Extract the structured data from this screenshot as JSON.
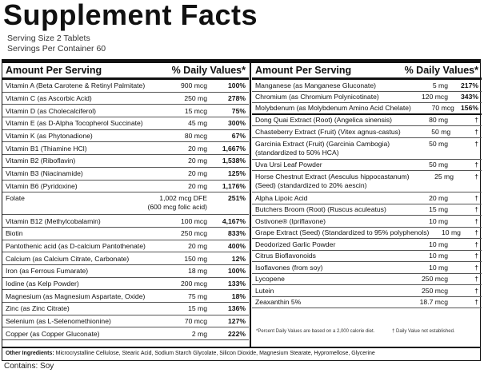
{
  "title": "Supplement Facts",
  "serving_size": "Serving Size 2 Tablets",
  "servings_per_container": "Servings Per Container 60",
  "headers": {
    "amount": "Amount Per Serving",
    "dv": "% Daily Values*"
  },
  "left_rows": [
    {
      "name": "Vitamin A (Beta Carotene & Retinyl Palmitate)",
      "amount": "900 mcg",
      "dv": "100%"
    },
    {
      "name": "Vitamin C (as Ascorbic Acid)",
      "amount": "250 mg",
      "dv": "278%"
    },
    {
      "name": "Vitamin D (as Cholecalciferol)",
      "amount": "15 mcg",
      "dv": "75%"
    },
    {
      "name": "Vitamin E (as D-Alpha Tocopherol Succinate)",
      "amount": "45 mg",
      "dv": "300%"
    },
    {
      "name": "Vitamin K (as Phytonadione)",
      "amount": "80 mcg",
      "dv": "67%"
    },
    {
      "name": "Vitamin B1 (Thiamine HCl)",
      "amount": "20 mg",
      "dv": "1,667%"
    },
    {
      "name": "Vitamin B2 (Riboflavin)",
      "amount": "20 mg",
      "dv": "1,538%"
    },
    {
      "name": "Vitamin B3 (Niacinamide)",
      "amount": "20 mg",
      "dv": "125%"
    },
    {
      "name": "Vitamin B6 (Pyridoxine)",
      "amount": "20 mg",
      "dv": "1,176%"
    },
    {
      "name": "Folate",
      "amount": "1,002 mcg DFE",
      "amount2": "(600 mcg folic acid)",
      "dv": "251%"
    },
    {
      "name": "Vitamin B12 (Methylcobalamin)",
      "amount": "100 mcg",
      "dv": "4,167%"
    },
    {
      "name": "Biotin",
      "amount": "250 mcg",
      "dv": "833%"
    },
    {
      "name": "Pantothenic acid (as D-calcium Pantothenate)",
      "amount": "20 mg",
      "dv": "400%"
    },
    {
      "name": "Calcium (as Calcium Citrate, Carbonate)",
      "amount": "150 mg",
      "dv": "12%"
    },
    {
      "name": "Iron (as Ferrous Fumarate)",
      "amount": "18 mg",
      "dv": "100%"
    },
    {
      "name": "Iodine (as Kelp Powder)",
      "amount": "200 mcg",
      "dv": "133%"
    },
    {
      "name": "Magnesium (as Magnesium Aspartate, Oxide)",
      "amount": "75 mg",
      "dv": "18%"
    },
    {
      "name": "Zinc (as Zinc Citrate)",
      "amount": "15 mg",
      "dv": "136%"
    },
    {
      "name": "Selenium (as L-Selenomethionine)",
      "amount": "70 mcg",
      "dv": "127%"
    },
    {
      "name": "Copper (as Copper Gluconate)",
      "amount": "2 mg",
      "dv": "222%"
    }
  ],
  "right_rows": [
    {
      "name": "Manganese (as Manganese Gluconate)",
      "amount": "5 mg",
      "dv": "217%"
    },
    {
      "name": "Chromium (as Chromium Polynicotinate)",
      "amount": "120 mcg",
      "dv": "343%"
    },
    {
      "name": "Molybdenum (as Molybdenum Amino Acid Chelate)",
      "amount": "70 mcg",
      "dv": "156%"
    },
    {
      "name": "Dong Quai Extract (Root) (Angelica sinensis)",
      "amount": "80 mg",
      "dv": "†"
    },
    {
      "name": "Chasteberry Extract (Fruit) (Vitex agnus-castus)",
      "amount": "50 mg",
      "dv": "†"
    },
    {
      "name": "Garcinia Extract (Fruit) (Garcinia Cambogia)",
      "name2": "(standardized to 50% HCA)",
      "amount": "50 mg",
      "dv": "†"
    },
    {
      "name": "Uva Ursi Leaf Powder",
      "amount": "50 mg",
      "dv": "†"
    },
    {
      "name": "Horse Chestnut Extract (Aesculus hippocastanum)",
      "name2": "(Seed) (standardized to 20% aescin)",
      "amount": "25 mg",
      "dv": "†"
    },
    {
      "name": "Alpha Lipoic Acid",
      "amount": "20 mg",
      "dv": "†"
    },
    {
      "name": "Butchers Broom (Root) (Ruscus aculeatus)",
      "amount": "15 mg",
      "dv": "†"
    },
    {
      "name": "Ostivone® (Ipriflavone)",
      "amount": "10 mg",
      "dv": "†"
    },
    {
      "name": "Grape Extract (Seed) (Standardized to 95% polyphenols)",
      "amount": "10 mg",
      "dv": "†"
    },
    {
      "name": "Deodorized Garlic Powder",
      "amount": "10 mg",
      "dv": "†"
    },
    {
      "name": "Citrus Bioflavonoids",
      "amount": "10 mg",
      "dv": "†"
    },
    {
      "name": "Isoflavones (from soy)",
      "amount": "10 mg",
      "dv": "†"
    },
    {
      "name": "Lycopene",
      "amount": "250 mcg",
      "dv": "†"
    },
    {
      "name": "Lutein",
      "amount": "250 mcg",
      "dv": "†"
    },
    {
      "name": "Zeaxanthin 5%",
      "amount": "18.7 mcg",
      "dv": "†"
    }
  ],
  "footnote_left": "*Percent Daily Values are based on a 2,000 calorie diet.",
  "footnote_right": "† Daily Value not established.",
  "other_label": "Other Ingredients:",
  "other_ingredients": "Microcrystalline Cellulose, Stearic Acid, Sodium Starch Glycolate, Silicon Dioxide, Magnesium Stearate, Hypromellose, Glycerine",
  "contains": "Contains: Soy"
}
